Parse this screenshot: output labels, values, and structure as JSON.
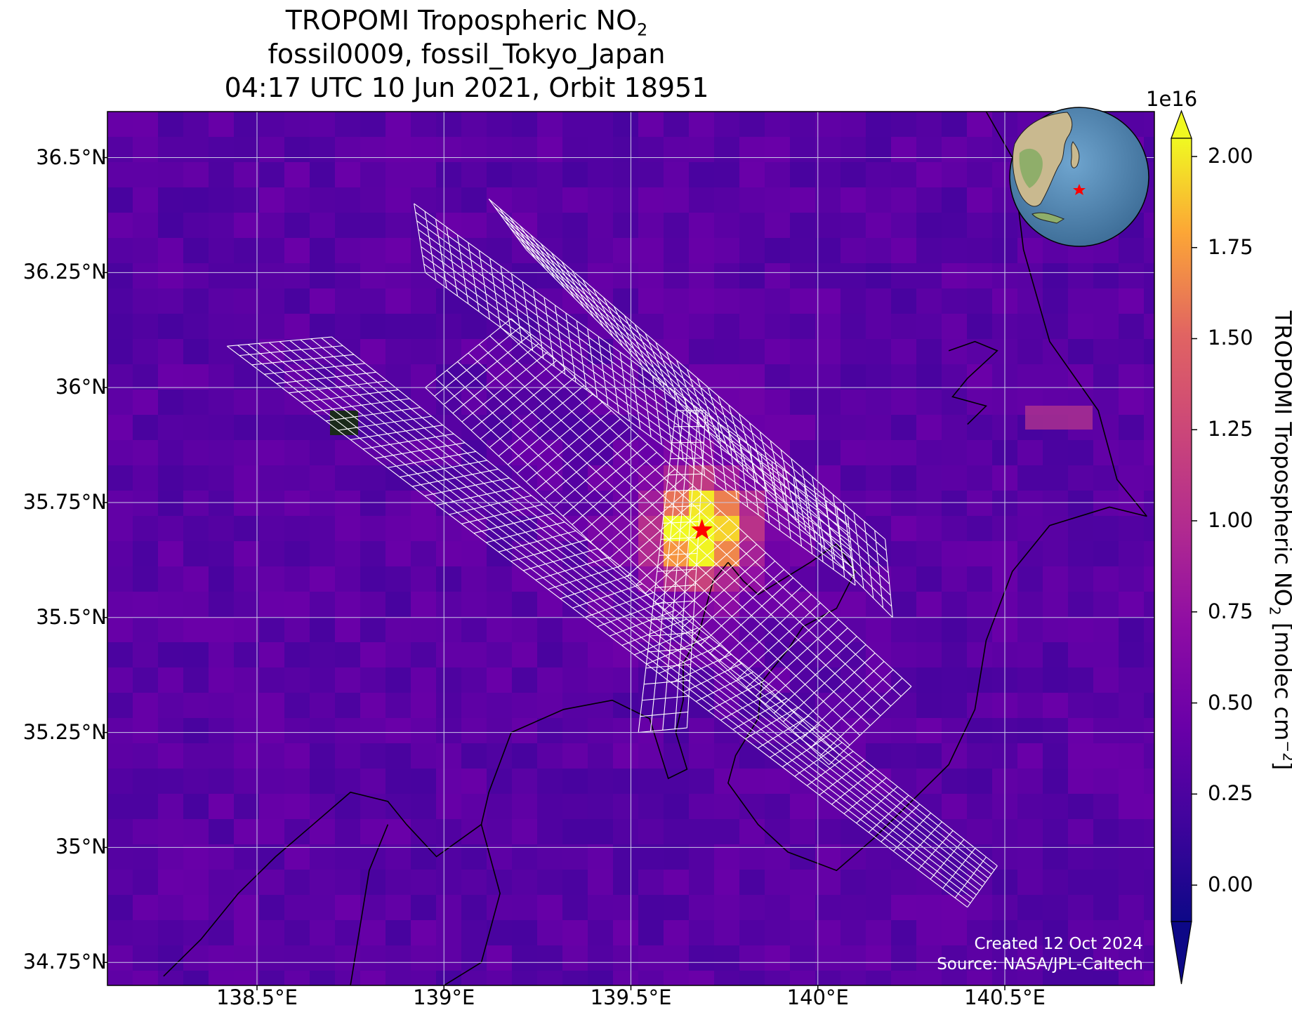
{
  "title": {
    "line1_prefix": "TROPOMI Tropospheric NO",
    "line1_sub": "2",
    "line2": "fossil0009, fossil_Tokyo_Japan",
    "line3": "04:17 UTC 10 Jun 2021, Orbit 18951"
  },
  "map": {
    "lon_range": [
      138.1,
      140.9
    ],
    "lat_range": [
      34.7,
      36.6
    ],
    "lat_ticks": [
      {
        "value": 36.5,
        "label": "36.5°N"
      },
      {
        "value": 36.25,
        "label": "36.25°N"
      },
      {
        "value": 36.0,
        "label": "36°N"
      },
      {
        "value": 35.75,
        "label": "35.75°N"
      },
      {
        "value": 35.5,
        "label": "35.5°N"
      },
      {
        "value": 35.25,
        "label": "35.25°N"
      },
      {
        "value": 35.0,
        "label": "35°N"
      },
      {
        "value": 34.75,
        "label": "34.75°N"
      }
    ],
    "lon_ticks": [
      {
        "value": 138.5,
        "label": "138.5°E"
      },
      {
        "value": 139.0,
        "label": "139°E"
      },
      {
        "value": 139.5,
        "label": "139.5°E"
      },
      {
        "value": 140.0,
        "label": "140°E"
      },
      {
        "value": 140.5,
        "label": "140.5°E"
      }
    ],
    "site_marker": {
      "lon": 139.69,
      "lat": 35.69,
      "color": "#ff0000",
      "icon": "star-icon"
    },
    "background_color": "#3d0f9c",
    "grid_color": "#c8c8e6",
    "target_color": "#ffffff",
    "coast_color": "#000000"
  },
  "colorbar": {
    "label_prefix": "TROPOMI Tropospheric NO",
    "label_sub": "2",
    "label_unit_prefix": " [molec cm",
    "label_sup": "−2",
    "label_suffix": "]",
    "exponent": "1e16",
    "vmin": -0.1,
    "vmax": 2.05,
    "colormap": "plasma",
    "ticks": [
      {
        "value": 0.0,
        "label": "0.00"
      },
      {
        "value": 0.25,
        "label": "0.25"
      },
      {
        "value": 0.5,
        "label": "0.50"
      },
      {
        "value": 0.75,
        "label": "0.75"
      },
      {
        "value": 1.0,
        "label": "1.00"
      },
      {
        "value": 1.25,
        "label": "1.25"
      },
      {
        "value": 1.5,
        "label": "1.50"
      },
      {
        "value": 1.75,
        "label": "1.75"
      },
      {
        "value": 2.0,
        "label": "2.00"
      }
    ]
  },
  "credit": {
    "created": "Created 12 Oct 2024",
    "source": "Source: NASA/JPL-Caltech"
  }
}
